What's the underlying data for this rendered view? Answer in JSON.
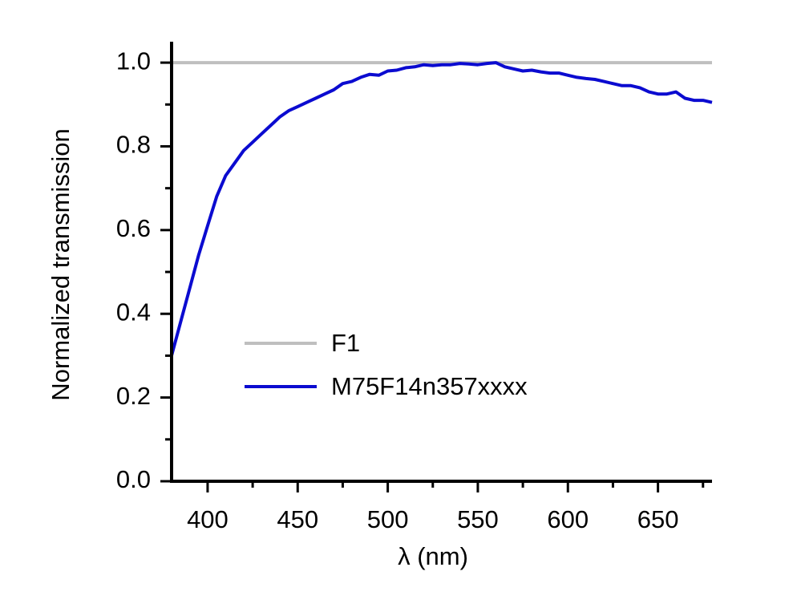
{
  "chart_data": {
    "type": "line",
    "xlabel": "λ (nm)",
    "ylabel": "Normalized transmission",
    "x": [
      380,
      385,
      390,
      395,
      400,
      405,
      410,
      415,
      420,
      425,
      430,
      435,
      440,
      445,
      450,
      455,
      460,
      465,
      470,
      475,
      480,
      485,
      490,
      495,
      500,
      505,
      510,
      515,
      520,
      525,
      530,
      535,
      540,
      545,
      550,
      555,
      560,
      565,
      570,
      575,
      580,
      585,
      590,
      595,
      600,
      605,
      610,
      615,
      620,
      625,
      630,
      635,
      640,
      645,
      650,
      655,
      660,
      665,
      670,
      675,
      680
    ],
    "series": [
      {
        "name": "F1",
        "color": "#bfbfbf",
        "values": [
          1,
          1,
          1,
          1,
          1,
          1,
          1,
          1,
          1,
          1,
          1,
          1,
          1,
          1,
          1,
          1,
          1,
          1,
          1,
          1,
          1,
          1,
          1,
          1,
          1,
          1,
          1,
          1,
          1,
          1,
          1,
          1,
          1,
          1,
          1,
          1,
          1,
          1,
          1,
          1,
          1,
          1,
          1,
          1,
          1,
          1,
          1,
          1,
          1,
          1,
          1,
          1,
          1,
          1,
          1,
          1,
          1,
          1,
          1,
          1,
          1
        ]
      },
      {
        "name": "M75F14n357xxxx",
        "color": "#0b0bd0",
        "values": [
          0.3,
          0.38,
          0.46,
          0.54,
          0.61,
          0.68,
          0.73,
          0.76,
          0.79,
          0.81,
          0.83,
          0.85,
          0.87,
          0.885,
          0.895,
          0.905,
          0.915,
          0.925,
          0.935,
          0.95,
          0.955,
          0.965,
          0.972,
          0.97,
          0.98,
          0.982,
          0.988,
          0.99,
          0.995,
          0.993,
          0.995,
          0.995,
          0.998,
          0.997,
          0.995,
          0.998,
          1.0,
          0.99,
          0.985,
          0.98,
          0.982,
          0.978,
          0.975,
          0.975,
          0.97,
          0.965,
          0.962,
          0.96,
          0.955,
          0.95,
          0.945,
          0.945,
          0.94,
          0.93,
          0.925,
          0.925,
          0.93,
          0.915,
          0.91,
          0.91,
          0.905
        ]
      }
    ],
    "xlim": [
      380,
      680
    ],
    "ylim": [
      0,
      1.05
    ],
    "xticks": [
      400,
      450,
      500,
      550,
      600,
      650
    ],
    "xminorticks": [
      425,
      475,
      525,
      575,
      625,
      675
    ],
    "yticks": [
      {
        "value": 0,
        "label": "0.0"
      },
      0.2,
      0.4,
      0.6,
      0.8,
      {
        "value": 1,
        "label": "1.0"
      }
    ],
    "yminorticks": [
      0.1,
      0.3,
      0.5,
      0.7,
      0.9
    ],
    "legend": "center-left"
  }
}
